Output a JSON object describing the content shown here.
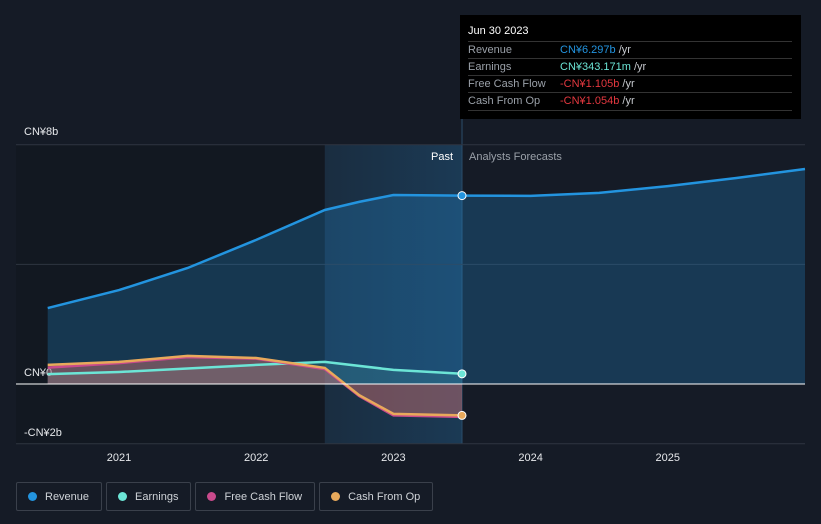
{
  "tooltip": {
    "date": "Jun 30 2023",
    "rows": [
      {
        "label": "Revenue",
        "value": "CN¥6.297b",
        "unit": " /yr",
        "color": "#2394df"
      },
      {
        "label": "Earnings",
        "value": "CN¥343.171m",
        "unit": " /yr",
        "color": "#6ce5d6"
      },
      {
        "label": "Free Cash Flow",
        "value": "-CN¥1.105b",
        "unit": " /yr",
        "color": "#e3383f"
      },
      {
        "label": "Cash From Op",
        "value": "-CN¥1.054b",
        "unit": " /yr",
        "color": "#e3383f"
      }
    ]
  },
  "chart_data": {
    "type": "line",
    "y_ticks": [
      {
        "value": 8,
        "label": "CN¥8b"
      },
      {
        "value": 0,
        "label": "CN¥0"
      },
      {
        "value": -2,
        "label": "-CN¥2b"
      }
    ],
    "x_ticks": [
      {
        "value": 2021,
        "label": "2021"
      },
      {
        "value": 2022,
        "label": "2022"
      },
      {
        "value": 2023,
        "label": "2023"
      },
      {
        "value": 2024,
        "label": "2024"
      },
      {
        "value": 2025,
        "label": "2025"
      }
    ],
    "ylim": [
      -2,
      8
    ],
    "xlim": [
      2020.25,
      2026
    ],
    "past_label": "Past",
    "forecast_label": "Analysts Forecasts",
    "past_end": 2023.5,
    "past_shade_start": 2022.5,
    "series": [
      {
        "name": "Revenue",
        "color": "#2394df",
        "x": [
          2020.48,
          2021,
          2021.5,
          2022,
          2022.5,
          2022.75,
          2023,
          2023.5,
          2024,
          2024.5,
          2025,
          2025.5,
          2026
        ],
        "values": [
          2.54,
          3.14,
          3.88,
          4.82,
          5.82,
          6.09,
          6.32,
          6.3,
          6.29,
          6.39,
          6.62,
          6.89,
          7.19
        ]
      },
      {
        "name": "Earnings",
        "color": "#6ce5d6",
        "x": [
          2020.48,
          2021,
          2021.5,
          2022,
          2022.5,
          2023,
          2023.5
        ],
        "values": [
          0.33,
          0.4,
          0.52,
          0.64,
          0.74,
          0.47,
          0.34
        ]
      },
      {
        "name": "Free Cash Flow",
        "color": "#c94a8c",
        "x": [
          2020.48,
          2021,
          2021.5,
          2022,
          2022.5,
          2022.75,
          2023,
          2023.5
        ],
        "values": [
          0.55,
          0.7,
          0.9,
          0.85,
          0.5,
          -0.4,
          -1.05,
          -1.1
        ]
      },
      {
        "name": "Cash From Op",
        "color": "#e8a95b",
        "x": [
          2020.48,
          2021,
          2021.5,
          2022,
          2022.5,
          2022.75,
          2023,
          2023.5
        ],
        "values": [
          0.64,
          0.74,
          0.94,
          0.87,
          0.54,
          -0.37,
          -1.0,
          -1.05
        ]
      }
    ]
  }
}
